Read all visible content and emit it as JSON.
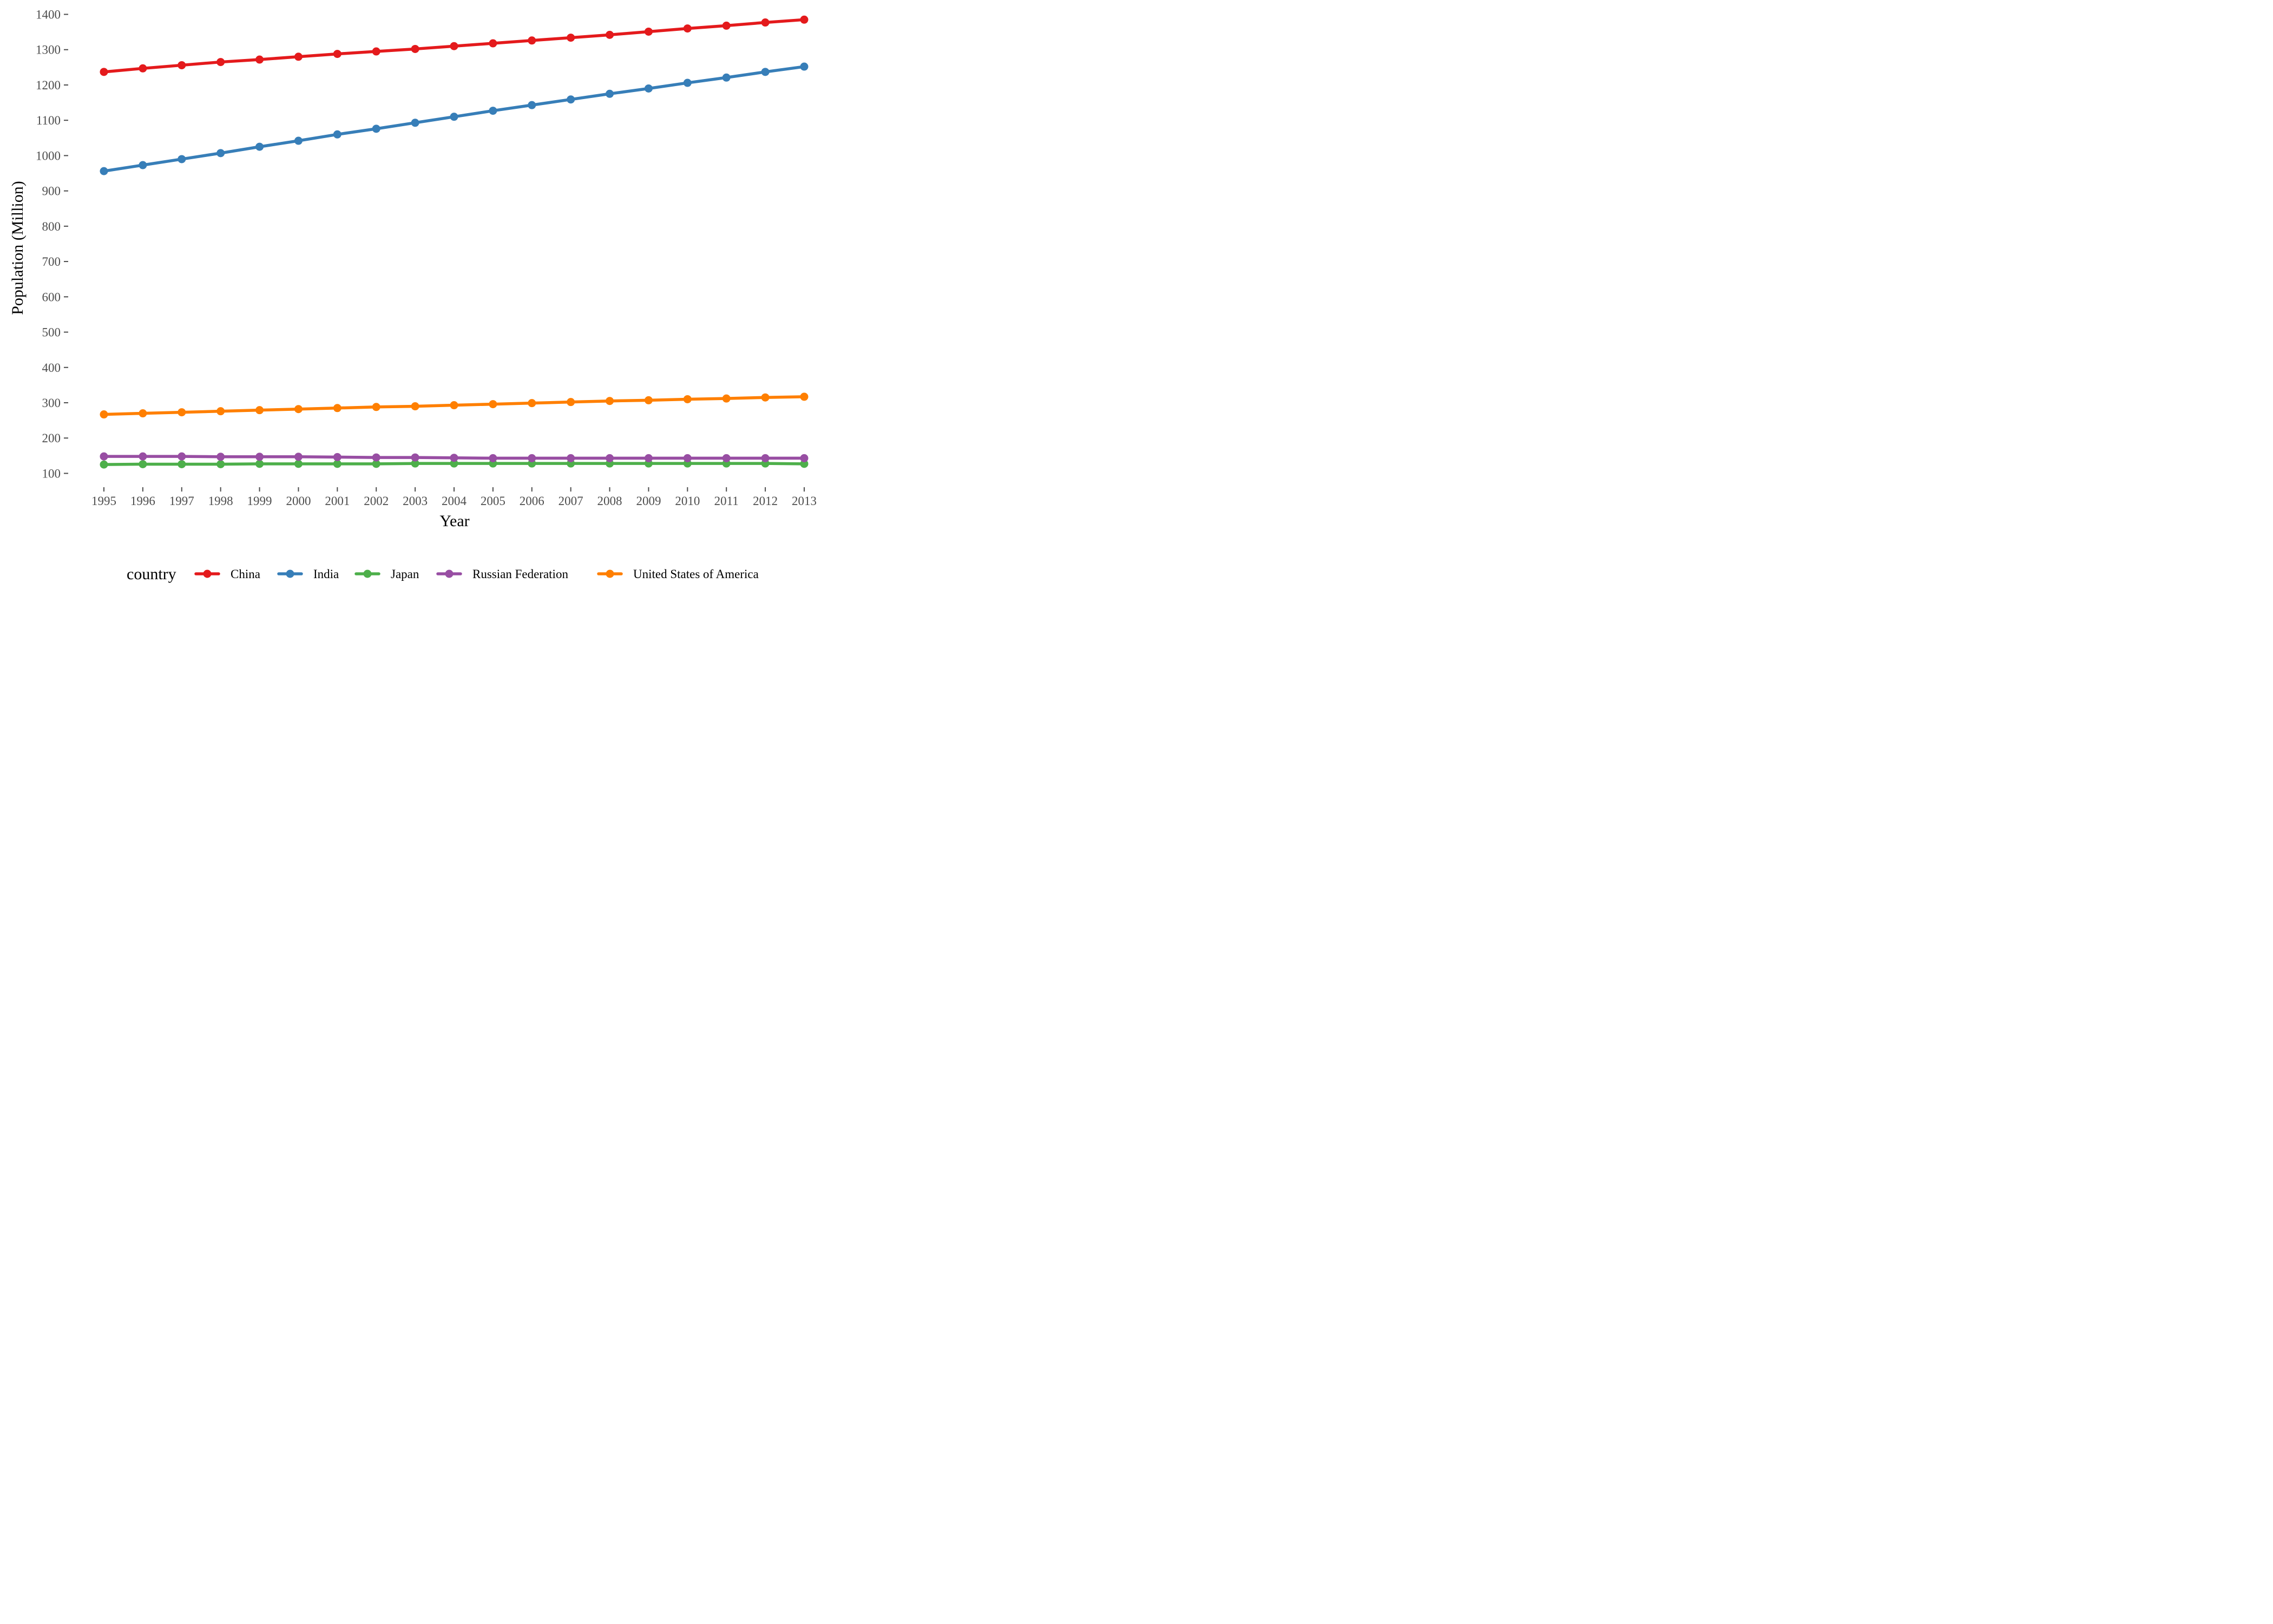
{
  "chart_data": {
    "type": "line",
    "title": "",
    "xlabel": "Year",
    "ylabel": "Population (Million)",
    "x": [
      1995,
      1996,
      1997,
      1998,
      1999,
      2000,
      2001,
      2002,
      2003,
      2004,
      2005,
      2006,
      2007,
      2008,
      2009,
      2010,
      2011,
      2012,
      2013
    ],
    "xlim": [
      1995,
      2013
    ],
    "ylim": [
      70,
      1410
    ],
    "y_ticks": [
      100,
      200,
      300,
      400,
      500,
      600,
      700,
      800,
      900,
      1000,
      1100,
      1200,
      1300,
      1400
    ],
    "grid": false,
    "markers": true,
    "legend": {
      "title": "country",
      "position": "bottom"
    },
    "series": [
      {
        "name": "China",
        "color": "#e41a1c",
        "values": [
          1237,
          1247,
          1256,
          1265,
          1272,
          1280,
          1288,
          1295,
          1302,
          1310,
          1318,
          1326,
          1334,
          1342,
          1351,
          1360,
          1368,
          1377,
          1385
        ]
      },
      {
        "name": "India",
        "color": "#377eb8",
        "values": [
          956,
          973,
          990,
          1007,
          1025,
          1042,
          1060,
          1076,
          1093,
          1110,
          1127,
          1143,
          1159,
          1175,
          1190,
          1206,
          1221,
          1237,
          1252
        ]
      },
      {
        "name": "Japan",
        "color": "#4daf4a",
        "values": [
          125,
          126,
          126,
          126,
          127,
          127,
          127,
          127,
          128,
          128,
          128,
          128,
          128,
          128,
          128,
          128,
          128,
          128,
          127
        ]
      },
      {
        "name": "Russian Federation",
        "color": "#984ea3",
        "values": [
          148,
          148,
          148,
          147,
          147,
          147,
          146,
          145,
          145,
          144,
          143,
          143,
          143,
          143,
          143,
          143,
          143,
          143,
          143
        ]
      },
      {
        "name": "United States of America",
        "color": "#ff7f00",
        "values": [
          267,
          270,
          273,
          276,
          279,
          282,
          285,
          288,
          290,
          293,
          296,
          299,
          302,
          305,
          307,
          310,
          312,
          315,
          317
        ]
      }
    ]
  }
}
